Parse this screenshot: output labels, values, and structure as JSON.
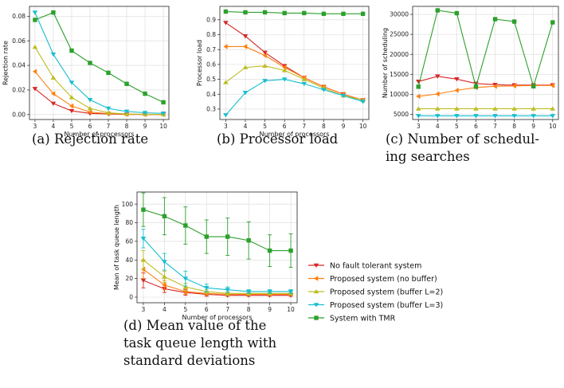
{
  "series_styles": [
    {
      "name": "No fault tolerant system",
      "color": "#d62728",
      "marker": "tri-down"
    },
    {
      "name": "Proposed system (no buffer)",
      "color": "#ff7f0e",
      "marker": "tri-left"
    },
    {
      "name": "Proposed system (buffer L=2)",
      "color": "#bcbd22",
      "marker": "tri-up"
    },
    {
      "name": "Proposed system (buffer L=3)",
      "color": "#17becf",
      "marker": "tri-down"
    },
    {
      "name": "System with TMR",
      "color": "#2ca02c",
      "marker": "square"
    }
  ],
  "chart_data": [
    {
      "id": "a",
      "type": "line",
      "caption": [
        "(a) Rejection rate"
      ],
      "xlabel": "Number of processors",
      "ylabel": "Rejection rate",
      "x": [
        3,
        4,
        5,
        6,
        7,
        8,
        9,
        10
      ],
      "xlim": [
        2.7,
        10.3
      ],
      "ylim": [
        -0.004,
        0.088
      ],
      "yticks": [
        0.0,
        0.02,
        0.04,
        0.06,
        0.08
      ],
      "ytick_labels": [
        "0.00",
        "0.02",
        "0.04",
        "0.06",
        "0.08"
      ],
      "series": [
        {
          "values": [
            0.021,
            0.009,
            0.003,
            0.001,
            0.0005,
            0.0002,
            0.0001,
            0.0001
          ]
        },
        {
          "values": [
            0.035,
            0.017,
            0.007,
            0.002,
            0.0008,
            0.0003,
            0.0002,
            0.0001
          ]
        },
        {
          "values": [
            0.055,
            0.03,
            0.014,
            0.005,
            0.0015,
            0.0005,
            0.0003,
            0.0002
          ]
        },
        {
          "values": [
            0.083,
            0.049,
            0.026,
            0.012,
            0.005,
            0.0025,
            0.0015,
            0.001
          ]
        },
        {
          "values": [
            0.077,
            0.083,
            0.052,
            0.042,
            0.034,
            0.025,
            0.017,
            0.01
          ]
        }
      ]
    },
    {
      "id": "b",
      "type": "line",
      "caption": [
        "(b) Processor load"
      ],
      "xlabel": "Number of processors",
      "ylabel": "Processor load",
      "x": [
        3,
        4,
        5,
        6,
        7,
        8,
        9,
        10
      ],
      "xlim": [
        2.7,
        10.3
      ],
      "ylim": [
        0.23,
        0.99
      ],
      "yticks": [
        0.3,
        0.4,
        0.5,
        0.6,
        0.7,
        0.8,
        0.9
      ],
      "ytick_labels": [
        "0.3",
        "0.4",
        "0.5",
        "0.6",
        "0.7",
        "0.8",
        "0.9"
      ],
      "series": [
        {
          "values": [
            0.88,
            0.79,
            0.68,
            0.59,
            0.51,
            0.45,
            0.4,
            0.36
          ]
        },
        {
          "values": [
            0.72,
            0.72,
            0.66,
            0.58,
            0.51,
            0.45,
            0.4,
            0.36
          ]
        },
        {
          "values": [
            0.48,
            0.58,
            0.59,
            0.56,
            0.5,
            0.44,
            0.39,
            0.36
          ]
        },
        {
          "values": [
            0.26,
            0.41,
            0.49,
            0.5,
            0.47,
            0.43,
            0.39,
            0.35
          ]
        },
        {
          "values": [
            0.955,
            0.95,
            0.95,
            0.945,
            0.945,
            0.94,
            0.94,
            0.94
          ]
        }
      ]
    },
    {
      "id": "c",
      "type": "line",
      "caption": [
        "(c) Number of schedul-",
        "ing searches"
      ],
      "xlabel": "",
      "ylabel": "Number of scheduling",
      "x": [
        3,
        4,
        5,
        6,
        7,
        8,
        9,
        10
      ],
      "xlim": [
        2.7,
        10.3
      ],
      "ylim": [
        3700,
        32000
      ],
      "yticks": [
        5000,
        10000,
        15000,
        20000,
        25000,
        30000
      ],
      "ytick_labels": [
        "5000",
        "10000",
        "15000",
        "20000",
        "25000",
        "30000"
      ],
      "series": [
        {
          "values": [
            13200,
            14500,
            13800,
            12700,
            12400,
            12300,
            12300,
            12300
          ]
        },
        {
          "values": [
            9500,
            10100,
            11000,
            11700,
            12000,
            12100,
            12200,
            12200
          ]
        },
        {
          "values": [
            6400,
            6400,
            6400,
            6400,
            6400,
            6400,
            6400,
            6400
          ]
        },
        {
          "values": [
            4600,
            4600,
            4600,
            4600,
            4600,
            4600,
            4600,
            4600
          ]
        },
        {
          "values": [
            11900,
            31000,
            30300,
            11900,
            28800,
            28200,
            12000,
            28000
          ]
        }
      ]
    },
    {
      "id": "d",
      "type": "line",
      "caption": [
        "(d) Mean value of the",
        "task queue length with",
        "standard deviations"
      ],
      "xlabel": "Number of processors",
      "ylabel": "Mean of task queue length",
      "x": [
        3,
        4,
        5,
        6,
        7,
        8,
        9,
        10
      ],
      "xlim": [
        2.7,
        10.3
      ],
      "ylim": [
        -6,
        113
      ],
      "yticks": [
        0,
        20,
        40,
        60,
        80,
        100
      ],
      "ytick_labels": [
        "0",
        "20",
        "40",
        "60",
        "80",
        "100"
      ],
      "series": [
        {
          "values": [
            18,
            9,
            5,
            3,
            2,
            2,
            2,
            2
          ],
          "err": [
            8,
            4,
            3,
            2,
            1,
            1,
            1,
            1
          ]
        },
        {
          "values": [
            30,
            13,
            6,
            4,
            3,
            3,
            3,
            3
          ],
          "err": [
            10,
            5,
            3,
            2,
            1,
            1,
            1,
            1
          ]
        },
        {
          "values": [
            40,
            22,
            11,
            6,
            4,
            4,
            4,
            4
          ],
          "err": [
            10,
            6,
            4,
            2,
            2,
            1,
            1,
            1
          ]
        },
        {
          "values": [
            63,
            38,
            20,
            10,
            8,
            6,
            6,
            6
          ],
          "err": [
            10,
            9,
            8,
            4,
            3,
            2,
            2,
            2
          ]
        },
        {
          "values": [
            94,
            87,
            77,
            65,
            65,
            61,
            50,
            50
          ],
          "err": [
            18,
            20,
            20,
            18,
            20,
            20,
            17,
            18
          ]
        }
      ]
    }
  ]
}
